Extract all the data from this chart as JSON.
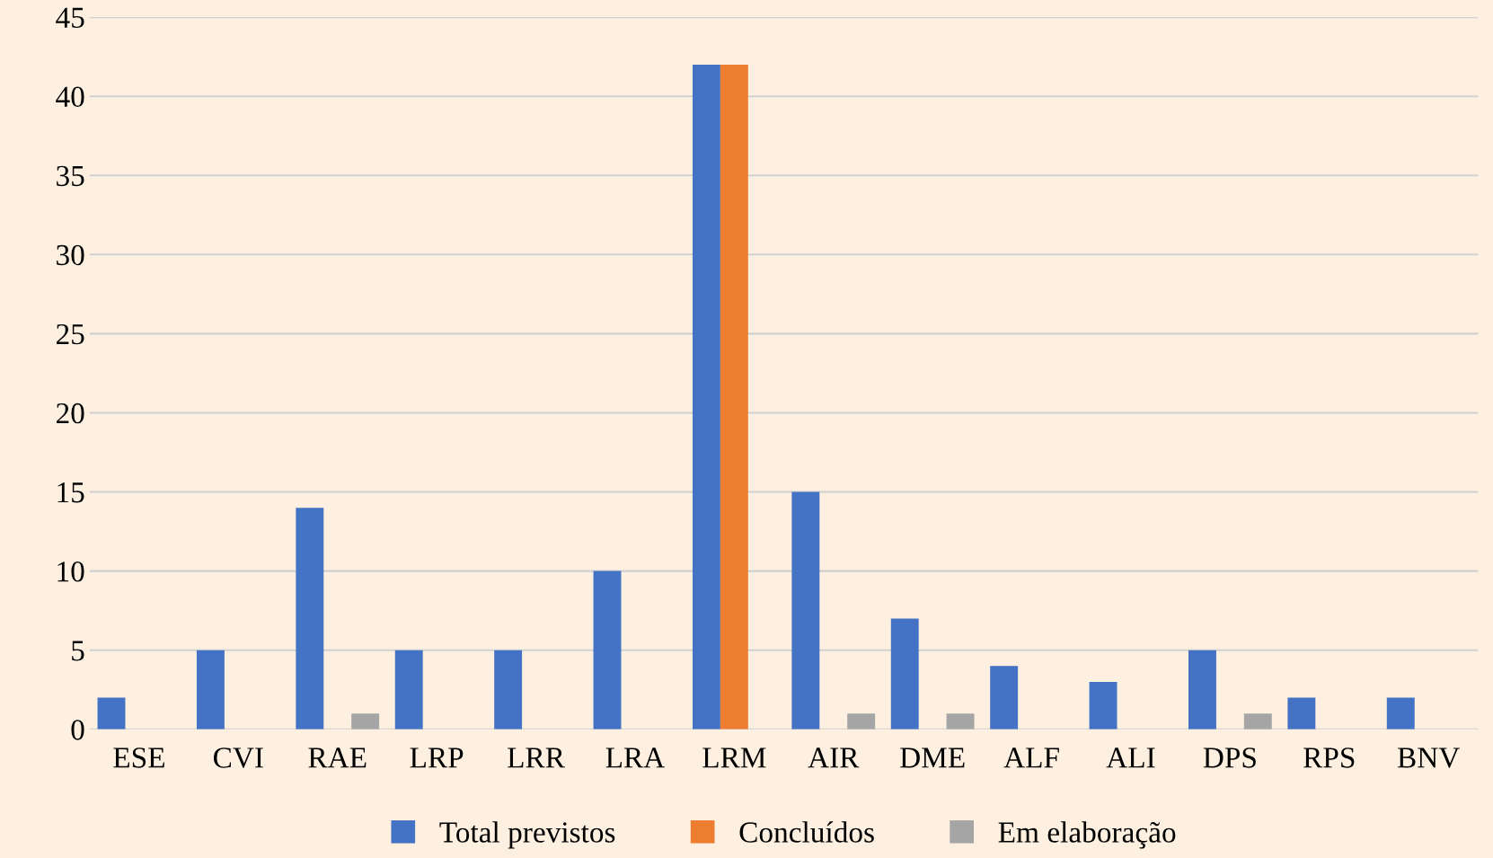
{
  "chart_data": {
    "type": "bar",
    "categories": [
      "ESE",
      "CVI",
      "RAE",
      "LRP",
      "LRR",
      "LRA",
      "LRM",
      "AIR",
      "DME",
      "ALF",
      "ALI",
      "DPS",
      "RPS",
      "BNV"
    ],
    "series": [
      {
        "name": "Total previstos",
        "color": "#4472c4",
        "values": [
          2,
          5,
          14,
          5,
          5,
          10,
          42,
          15,
          7,
          4,
          3,
          5,
          2,
          2
        ]
      },
      {
        "name": "Concluídos",
        "color": "#ed7d31",
        "values": [
          0,
          0,
          0,
          0,
          0,
          0,
          42,
          0,
          0,
          0,
          0,
          0,
          0,
          0
        ]
      },
      {
        "name": "Em elaboração",
        "color": "#a5a5a5",
        "values": [
          0,
          0,
          1,
          0,
          0,
          0,
          0,
          1,
          1,
          0,
          0,
          1,
          0,
          0
        ]
      }
    ],
    "ylim": [
      0,
      45
    ],
    "yticks": [
      0,
      5,
      10,
      15,
      20,
      25,
      30,
      35,
      40,
      45
    ],
    "grid": "y",
    "legend": "bottom"
  }
}
